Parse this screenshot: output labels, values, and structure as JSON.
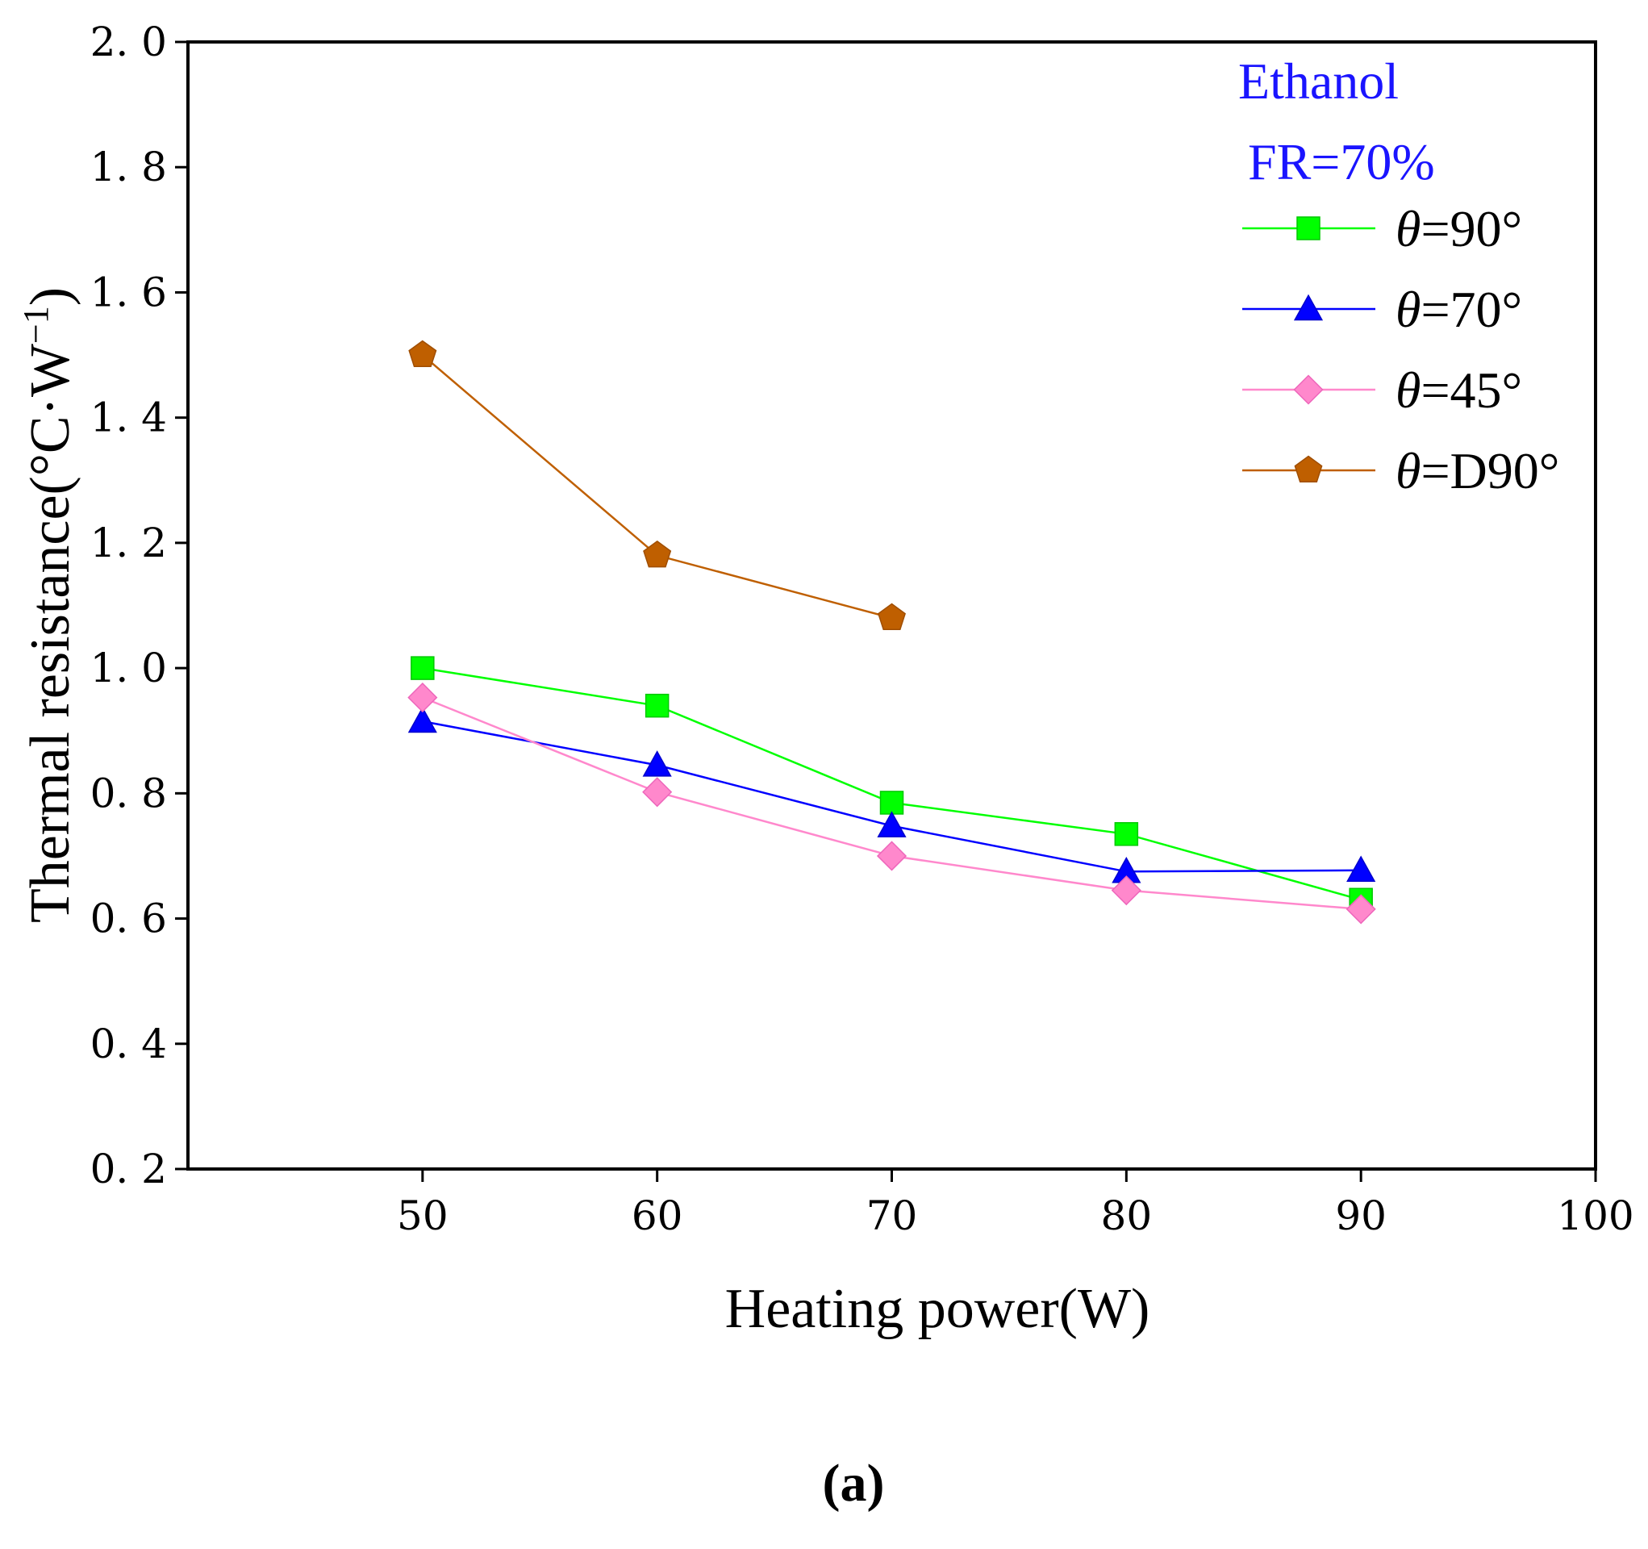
{
  "chart_data": {
    "type": "line",
    "title": "",
    "xlabel": "Heating power(W)",
    "ylabel": "Thermal resistance(°C·W",
    "ylabel_sup": "−1",
    "ylabel_close": ")",
    "xlim": [
      40,
      100
    ],
    "ylim": [
      0.2,
      2.0
    ],
    "x_ticks": [
      50,
      60,
      70,
      80,
      90,
      100
    ],
    "x_tick_labels": [
      "50",
      "60",
      "70",
      "80",
      "90",
      "100"
    ],
    "y_ticks": [
      0.2,
      0.4,
      0.6,
      0.8,
      1.0,
      1.2,
      1.4,
      1.6,
      1.8,
      2.0
    ],
    "y_tick_labels": [
      "0. 2",
      "0. 4",
      "0. 6",
      "0. 8",
      "1. 0",
      "1. 2",
      "1. 4",
      "1. 6",
      "1. 8",
      "2. 0"
    ],
    "grid": false,
    "legend_position": "top-right",
    "annotations": [
      "Ethanol",
      "FR=70%"
    ],
    "panel_label": "(a)",
    "series": [
      {
        "name": "θ=90°",
        "theta": "θ",
        "rest": "=90°",
        "marker": "square",
        "color": "#00ff00",
        "edge": "#00c800",
        "x": [
          50,
          60,
          70,
          80,
          90
        ],
        "values": [
          1.0,
          0.94,
          0.785,
          0.735,
          0.63
        ]
      },
      {
        "name": "θ=70°",
        "theta": "θ",
        "rest": "=70°",
        "marker": "triangle",
        "color": "#0000ff",
        "edge": "#0000cc",
        "x": [
          50,
          60,
          70,
          80,
          90
        ],
        "values": [
          0.915,
          0.845,
          0.748,
          0.675,
          0.677
        ]
      },
      {
        "name": "θ=45°",
        "theta": "θ",
        "rest": "=45°",
        "marker": "diamond",
        "color": "#ff88cc",
        "edge": "#ee66bb",
        "x": [
          50,
          60,
          70,
          80,
          90
        ],
        "values": [
          0.953,
          0.802,
          0.7,
          0.645,
          0.615
        ]
      },
      {
        "name": "θ=D90°",
        "theta": "θ",
        "rest": "=D90°",
        "marker": "pentagon",
        "color": "#bf5f00",
        "edge": "#a04e00",
        "x": [
          50,
          60,
          70
        ],
        "values": [
          1.5,
          1.18,
          1.08
        ]
      }
    ]
  }
}
